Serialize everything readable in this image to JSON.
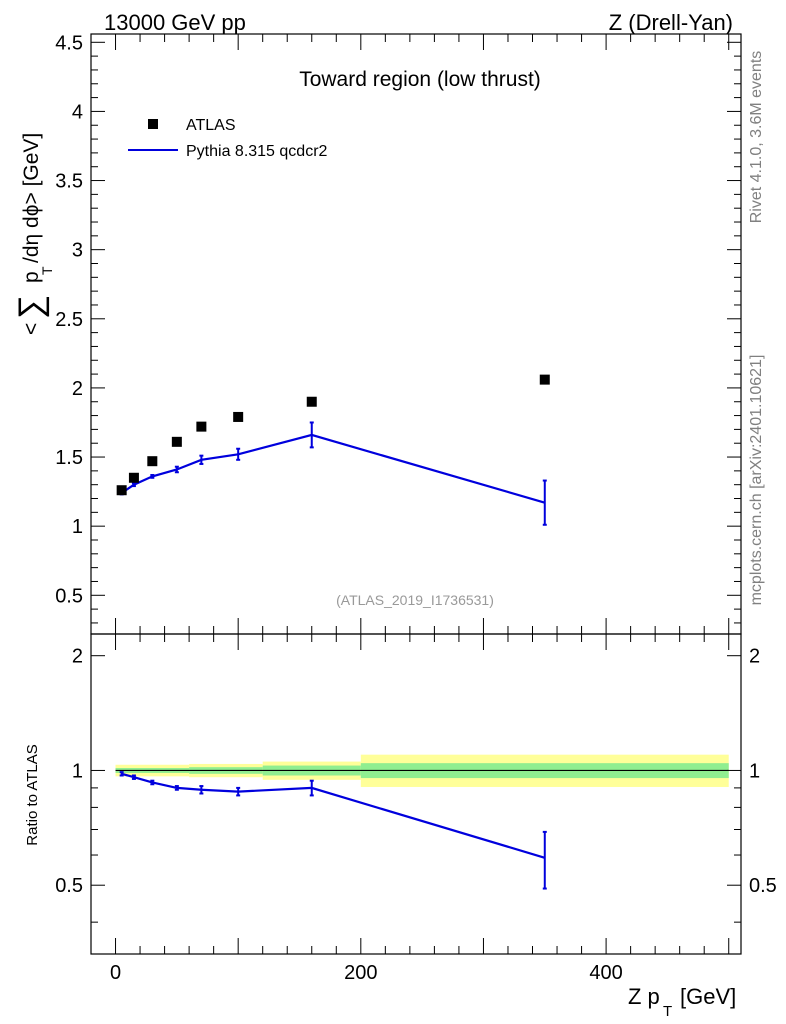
{
  "header": {
    "left": "13000 GeV pp",
    "right": "Z (Drell-Yan)"
  },
  "side": {
    "rivet": "Rivet 4.1.0,  3.6M events",
    "source": "mcplots.cern.ch [arXiv:2401.10621]"
  },
  "colors": {
    "data": "#000000",
    "mc": "#0000dd",
    "band_inner": "#90ee90",
    "band_outer": "#ffff99"
  },
  "chart_data": {
    "type": "line",
    "title": "Toward region (low thrust)",
    "analysis_id": "(ATLAS_2019_I1736531)",
    "xlabel_main": "Z p",
    "xlabel_sub": "T",
    "xlabel_unit": "[GeV]",
    "ylabel_lt": "<",
    "ylabel_sum": "∑",
    "ylabel_p": "p",
    "ylabel_sub": "T",
    "ylabel_rest": "/dη dϕ> [GeV]",
    "ratio_ylabel": "Ratio to ATLAS",
    "xlim": [
      -20,
      510
    ],
    "ylim": [
      0.22,
      4.56
    ],
    "ratio_ylim": [
      0.33,
      2.28
    ],
    "x_ticks": [
      "0",
      "200",
      "400"
    ],
    "y_ticks": [
      "0.5",
      "1",
      "1.5",
      "2",
      "2.5",
      "3",
      "3.5",
      "4",
      "4.5"
    ],
    "ratio_y_ticks": [
      "0.5",
      "1",
      "2"
    ],
    "legend": {
      "data": "ATLAS",
      "mc": "Pythia 8.315 qcdcr2"
    },
    "series": [
      {
        "name": "ATLAS",
        "x": [
          5,
          15,
          30,
          50,
          70,
          100,
          160,
          350
        ],
        "y": [
          1.26,
          1.35,
          1.47,
          1.61,
          1.72,
          1.79,
          1.9,
          2.06
        ]
      },
      {
        "name": "Pythia 8.315 qcdcr2",
        "x": [
          5,
          15,
          30,
          50,
          70,
          100,
          160,
          350
        ],
        "y": [
          1.24,
          1.3,
          1.36,
          1.41,
          1.48,
          1.52,
          1.66,
          1.17
        ],
        "yerr": [
          0.01,
          0.01,
          0.01,
          0.02,
          0.03,
          0.04,
          0.09,
          0.16
        ]
      }
    ],
    "ratio": {
      "x": [
        5,
        15,
        30,
        50,
        70,
        100,
        160,
        350
      ],
      "y": [
        0.98,
        0.96,
        0.93,
        0.9,
        0.89,
        0.88,
        0.9,
        0.59
      ],
      "yerr": [
        0.01,
        0.01,
        0.01,
        0.01,
        0.02,
        0.02,
        0.04,
        0.1
      ]
    },
    "bands": [
      {
        "x0": 0,
        "x1": 60,
        "inner": [
          0.985,
          1.015
        ],
        "outer": [
          0.965,
          1.035
        ]
      },
      {
        "x0": 60,
        "x1": 120,
        "inner": [
          0.98,
          1.02
        ],
        "outer": [
          0.96,
          1.04
        ]
      },
      {
        "x0": 120,
        "x1": 200,
        "inner": [
          0.97,
          1.03
        ],
        "outer": [
          0.945,
          1.055
        ]
      },
      {
        "x0": 200,
        "x1": 500,
        "inner": [
          0.955,
          1.045
        ],
        "outer": [
          0.905,
          1.1
        ]
      }
    ]
  }
}
